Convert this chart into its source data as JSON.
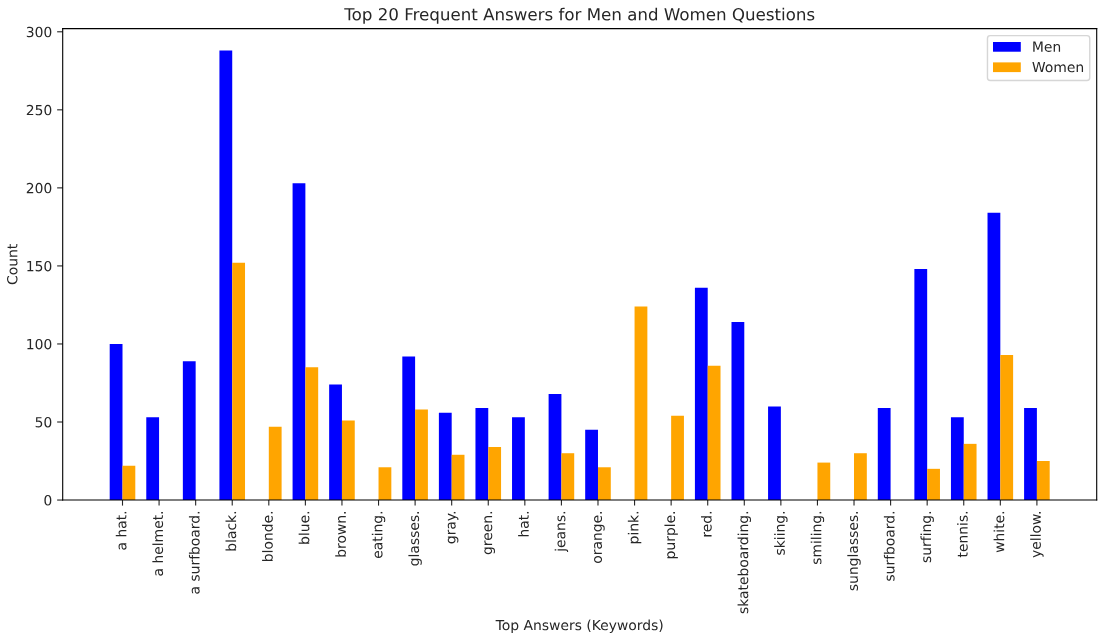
{
  "chart_data": {
    "type": "bar",
    "title": "Top 20 Frequent Answers for Men and Women Questions",
    "xlabel": "Top Answers (Keywords)",
    "ylabel": "Count",
    "categories": [
      "a hat.",
      "a helmet.",
      "a surfboard.",
      "black.",
      "blonde.",
      "blue.",
      "brown.",
      "eating.",
      "glasses.",
      "gray.",
      "green.",
      "hat.",
      "jeans.",
      "orange.",
      "pink.",
      "purple.",
      "red.",
      "skateboarding.",
      "skiing.",
      "smiling.",
      "sunglasses.",
      "surfboard.",
      "surfing.",
      "tennis.",
      "white.",
      "yellow."
    ],
    "series": [
      {
        "name": "Men",
        "color": "#0000ff",
        "values": [
          100,
          53,
          89,
          288,
          0,
          203,
          74,
          0,
          92,
          56,
          59,
          53,
          68,
          45,
          0,
          0,
          136,
          114,
          60,
          0,
          0,
          59,
          148,
          53,
          184,
          59
        ]
      },
      {
        "name": "Women",
        "color": "#ffa500",
        "values": [
          22,
          0,
          0,
          152,
          47,
          85,
          51,
          21,
          58,
          29,
          34,
          0,
          30,
          21,
          124,
          54,
          86,
          0,
          0,
          24,
          30,
          0,
          20,
          36,
          93,
          25
        ]
      }
    ],
    "ylim": [
      0,
      302
    ],
    "yticks": [
      0,
      50,
      100,
      150,
      200,
      250,
      300
    ],
    "grid": false,
    "legend": "top right"
  }
}
